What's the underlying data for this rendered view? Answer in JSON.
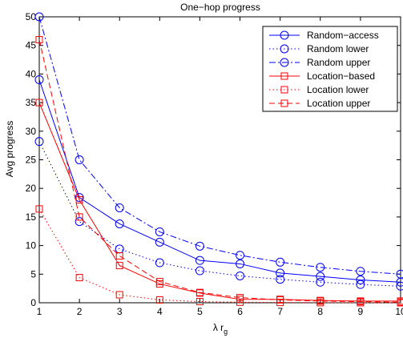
{
  "chart_data": {
    "type": "line",
    "title": "One−hop progress",
    "xlabel": "λ r",
    "xlabel_subscript": "g",
    "ylabel": "Avg progress",
    "xlim": [
      1,
      10
    ],
    "ylim": [
      0,
      50
    ],
    "xticks": [
      1,
      2,
      3,
      4,
      5,
      6,
      7,
      8,
      9,
      10
    ],
    "yticks": [
      0,
      5,
      10,
      15,
      20,
      25,
      30,
      35,
      40,
      45,
      50
    ],
    "grid": false,
    "legend_position": "top-right",
    "x": [
      1,
      2,
      3,
      4,
      5,
      6,
      7,
      8,
      9,
      10
    ],
    "series": [
      {
        "name": "Random−access",
        "color": "#0000ff",
        "line": "solid",
        "marker": "circle",
        "values": [
          39.0,
          18.4,
          13.8,
          10.6,
          7.4,
          6.8,
          5.2,
          4.6,
          4.0,
          3.6
        ]
      },
      {
        "name": "Random lower",
        "color": "#0000ff",
        "line": "dotted",
        "marker": "circle",
        "values": [
          28.2,
          14.2,
          9.4,
          7.0,
          5.6,
          4.7,
          4.1,
          3.6,
          3.2,
          2.9
        ]
      },
      {
        "name": "Random upper",
        "color": "#0000ff",
        "line": "dashdot",
        "marker": "circle",
        "values": [
          50.0,
          25.0,
          16.6,
          12.4,
          9.9,
          8.3,
          7.1,
          6.2,
          5.5,
          5.0
        ]
      },
      {
        "name": "Location−based",
        "color": "#ff0000",
        "line": "solid",
        "marker": "square",
        "values": [
          35.0,
          18.0,
          6.5,
          3.3,
          1.7,
          0.6,
          0.6,
          0.4,
          0.3,
          0.3
        ]
      },
      {
        "name": "Location lower",
        "color": "#ff0000",
        "line": "dotted",
        "marker": "square",
        "values": [
          16.4,
          4.4,
          1.4,
          0.5,
          0.2,
          0.1,
          0.05,
          0.02,
          0.01,
          0.0
        ]
      },
      {
        "name": "Location upper",
        "color": "#ff0000",
        "line": "dashed",
        "marker": "square",
        "values": [
          46.0,
          15.0,
          8.2,
          3.7,
          1.8,
          0.9,
          0.5,
          0.3,
          0.2,
          0.1
        ]
      }
    ]
  }
}
